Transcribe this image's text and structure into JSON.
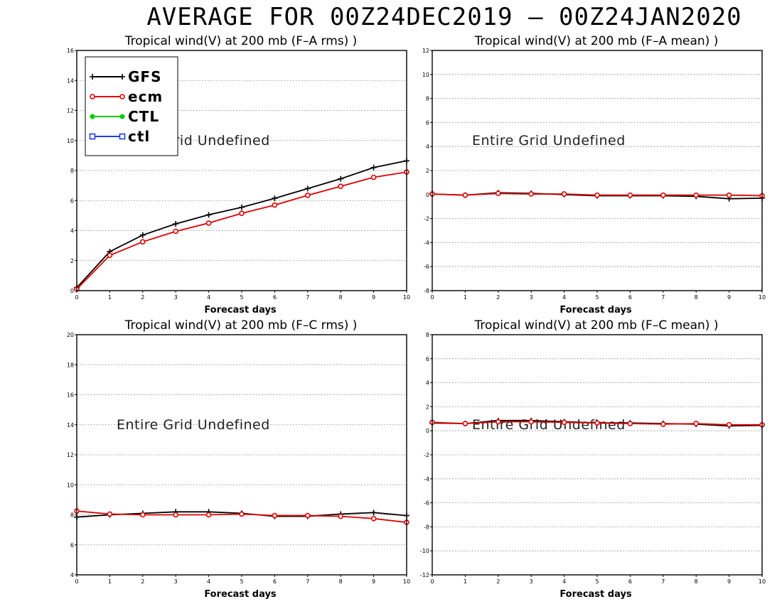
{
  "main_title": "AVERAGE FOR 00Z24DEC2019 – 00Z24JAN2020",
  "colors": {
    "GFS": "#000000",
    "ecm": "#e00000",
    "CTL": "#00cc00",
    "ctl": "#1f3fe0"
  },
  "legend": [
    {
      "label": "GFS",
      "marker": "plus",
      "color": "#000000"
    },
    {
      "label": "ecm",
      "marker": "circle",
      "color": "#e00000"
    },
    {
      "label": "CTL",
      "marker": "filled-circle",
      "color": "#00cc00"
    },
    {
      "label": "ctl",
      "marker": "square",
      "color": "#1f3fe0"
    }
  ],
  "chart_data": [
    {
      "type": "line",
      "title": "Tropical wind(V) at 200 mb (F–A rms) )",
      "xlabel": "Forecast days",
      "ylabel": "",
      "xlim": [
        0,
        10
      ],
      "ylim": [
        0,
        16
      ],
      "x_ticks": [
        0,
        1,
        2,
        3,
        4,
        5,
        6,
        7,
        8,
        9,
        10
      ],
      "y_ticks": [
        0,
        2,
        4,
        6,
        8,
        10,
        12,
        14,
        16
      ],
      "grid": "horizontal-dotted",
      "annotation": "Entire Grid Undefined",
      "legend_position": "top-left",
      "x": [
        0,
        1,
        2,
        3,
        4,
        5,
        6,
        7,
        8,
        9,
        10
      ],
      "series": [
        {
          "name": "GFS",
          "values": [
            0.2,
            2.6,
            3.7,
            4.45,
            5.05,
            5.55,
            6.15,
            6.8,
            7.45,
            8.2,
            8.65
          ]
        },
        {
          "name": "ecm",
          "values": [
            0.1,
            2.35,
            3.25,
            3.95,
            4.5,
            5.15,
            5.7,
            6.35,
            6.95,
            7.55,
            7.9
          ]
        }
      ]
    },
    {
      "type": "line",
      "title": "Tropical wind(V) at 200 mb (F–A mean) )",
      "xlabel": "Forecast days",
      "ylabel": "",
      "xlim": [
        0,
        10
      ],
      "ylim": [
        -8,
        12
      ],
      "x_ticks": [
        0,
        1,
        2,
        3,
        4,
        5,
        6,
        7,
        8,
        9,
        10
      ],
      "y_ticks": [
        -8,
        -6,
        -4,
        -2,
        0,
        2,
        4,
        6,
        8,
        10,
        12
      ],
      "grid": "horizontal-dotted",
      "annotation": "Entire Grid Undefined",
      "x": [
        0,
        1,
        2,
        3,
        4,
        5,
        6,
        7,
        8,
        9,
        10
      ],
      "series": [
        {
          "name": "GFS",
          "values": [
            0.05,
            -0.05,
            0.15,
            0.1,
            0.0,
            -0.1,
            -0.1,
            -0.1,
            -0.15,
            -0.35,
            -0.3
          ]
        },
        {
          "name": "ecm",
          "values": [
            0.05,
            -0.05,
            0.1,
            0.05,
            0.05,
            -0.05,
            -0.05,
            -0.05,
            -0.05,
            -0.05,
            -0.1
          ]
        }
      ]
    },
    {
      "type": "line",
      "title": "Tropical wind(V) at 200 mb (F–C rms) )",
      "xlabel": "Forecast days",
      "ylabel": "",
      "xlim": [
        0,
        10
      ],
      "ylim": [
        4,
        20
      ],
      "x_ticks": [
        0,
        1,
        2,
        3,
        4,
        5,
        6,
        7,
        8,
        9,
        10
      ],
      "y_ticks": [
        4,
        6,
        8,
        10,
        12,
        14,
        16,
        18,
        20
      ],
      "grid": "horizontal-dotted",
      "annotation": "Entire Grid Undefined",
      "x": [
        0,
        1,
        2,
        3,
        4,
        5,
        6,
        7,
        8,
        9,
        10
      ],
      "series": [
        {
          "name": "GFS",
          "values": [
            7.85,
            8.0,
            8.1,
            8.2,
            8.2,
            8.1,
            7.9,
            7.9,
            8.05,
            8.15,
            7.95
          ]
        },
        {
          "name": "ecm",
          "values": [
            8.25,
            8.05,
            8.0,
            8.0,
            8.0,
            8.05,
            7.95,
            7.95,
            7.9,
            7.75,
            7.5
          ]
        }
      ]
    },
    {
      "type": "line",
      "title": "Tropical wind(V) at 200 mb (F–C mean) )",
      "xlabel": "Forecast days",
      "ylabel": "",
      "xlim": [
        0,
        10
      ],
      "ylim": [
        -12,
        8
      ],
      "x_ticks": [
        0,
        1,
        2,
        3,
        4,
        5,
        6,
        7,
        8,
        9,
        10
      ],
      "y_ticks": [
        -12,
        -10,
        -8,
        -6,
        -4,
        -2,
        0,
        2,
        4,
        6,
        8
      ],
      "grid": "horizontal-dotted",
      "annotation": "Entire Grid Undefined",
      "x": [
        0,
        1,
        2,
        3,
        4,
        5,
        6,
        7,
        8,
        9,
        10
      ],
      "series": [
        {
          "name": "GFS",
          "values": [
            0.65,
            0.6,
            0.85,
            0.85,
            0.75,
            0.65,
            0.65,
            0.6,
            0.55,
            0.4,
            0.45
          ]
        },
        {
          "name": "ecm",
          "values": [
            0.7,
            0.6,
            0.75,
            0.75,
            0.7,
            0.65,
            0.6,
            0.55,
            0.6,
            0.5,
            0.5
          ]
        }
      ]
    }
  ]
}
